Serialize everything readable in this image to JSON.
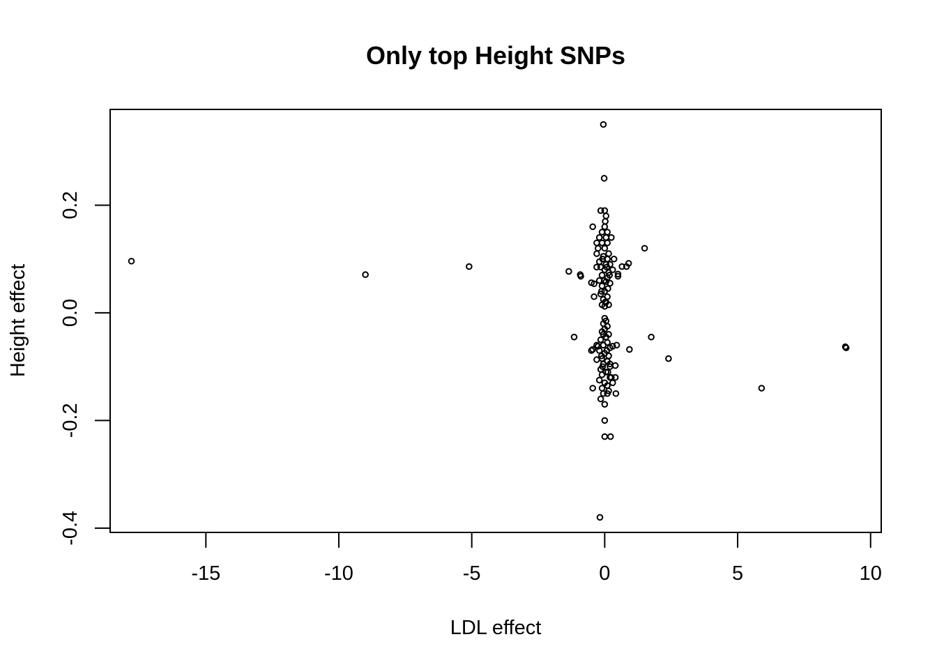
{
  "chart_data": {
    "type": "scatter",
    "title": "Only top Height SNPs",
    "xlabel": "LDL effect",
    "ylabel": "Height effect",
    "xlim": [
      -18.6,
      10.4
    ],
    "ylim": [
      -0.408,
      0.378
    ],
    "x_ticks": [
      -15,
      -10,
      -5,
      0,
      5,
      10
    ],
    "x_tick_labels": [
      "-15",
      "-10",
      "-5",
      "0",
      "5",
      "10"
    ],
    "y_ticks": [
      -0.4,
      -0.2,
      0.0,
      0.2
    ],
    "y_tick_labels": [
      "-0.4",
      "-0.2",
      "0.0",
      "0.2"
    ],
    "grid": false,
    "points": [
      [
        -17.8,
        0.096
      ],
      [
        -9.0,
        0.071
      ],
      [
        -5.1,
        0.086
      ],
      [
        -1.35,
        0.077
      ],
      [
        -0.92,
        0.071
      ],
      [
        -0.9,
        0.068
      ],
      [
        -0.5,
        0.056
      ],
      [
        -0.4,
        0.054
      ],
      [
        -0.4,
        0.03
      ],
      [
        -0.45,
        0.16
      ],
      [
        1.5,
        0.12
      ],
      [
        0.9,
        0.092
      ],
      [
        0.82,
        0.086
      ],
      [
        0.65,
        0.086
      ],
      [
        0.5,
        0.072
      ],
      [
        0.5,
        0.068
      ],
      [
        0.35,
        0.1
      ],
      [
        0.3,
        0.08
      ],
      [
        0.25,
        0.14
      ],
      [
        -1.15,
        -0.045
      ],
      [
        0.93,
        -0.068
      ],
      [
        1.75,
        -0.045
      ],
      [
        2.4,
        -0.085
      ],
      [
        5.9,
        -0.14
      ],
      [
        9.05,
        -0.063
      ],
      [
        9.08,
        -0.065
      ],
      [
        -0.45,
        -0.068
      ],
      [
        -0.5,
        -0.07
      ],
      [
        -0.3,
        -0.087
      ],
      [
        -0.45,
        -0.14
      ],
      [
        0.45,
        -0.06
      ],
      [
        0.4,
        -0.098
      ],
      [
        0.4,
        -0.12
      ],
      [
        0.42,
        -0.15
      ],
      [
        0.3,
        -0.13
      ],
      [
        0.25,
        -0.12
      ],
      [
        0.2,
        -0.095
      ],
      [
        -0.05,
        0.35
      ],
      [
        -0.02,
        0.25
      ],
      [
        -0.15,
        0.19
      ],
      [
        0.0,
        0.19
      ],
      [
        0.05,
        0.18
      ],
      [
        0.02,
        0.17
      ],
      [
        0.0,
        0.16
      ],
      [
        -0.1,
        0.15
      ],
      [
        0.1,
        0.15
      ],
      [
        -0.2,
        0.14
      ],
      [
        0.05,
        0.14
      ],
      [
        -0.3,
        0.13
      ],
      [
        -0.1,
        0.13
      ],
      [
        0.1,
        0.13
      ],
      [
        -0.25,
        0.12
      ],
      [
        0.0,
        0.12
      ],
      [
        0.15,
        0.11
      ],
      [
        -0.3,
        0.11
      ],
      [
        -0.05,
        0.105
      ],
      [
        0.1,
        0.1
      ],
      [
        -0.2,
        0.095
      ],
      [
        0.05,
        0.09
      ],
      [
        0.2,
        0.09
      ],
      [
        -0.15,
        0.085
      ],
      [
        -0.3,
        0.085
      ],
      [
        0.0,
        0.08
      ],
      [
        0.15,
        0.075
      ],
      [
        -0.1,
        0.07
      ],
      [
        0.1,
        0.065
      ],
      [
        -0.2,
        0.06
      ],
      [
        0.05,
        0.058
      ],
      [
        0.2,
        0.055
      ],
      [
        -0.1,
        0.05
      ],
      [
        0.12,
        0.045
      ],
      [
        0.0,
        0.04
      ],
      [
        -0.15,
        0.035
      ],
      [
        0.1,
        0.03
      ],
      [
        -0.05,
        0.025
      ],
      [
        0.05,
        0.02
      ],
      [
        -0.1,
        0.015
      ],
      [
        0.0,
        0.012
      ],
      [
        0.15,
        0.015
      ],
      [
        -0.08,
        0.1
      ],
      [
        0.08,
        0.085
      ],
      [
        -0.02,
        0.06
      ],
      [
        0.02,
        0.02
      ],
      [
        -0.12,
        0.04
      ],
      [
        0.18,
        0.07
      ],
      [
        0.0,
        -0.01
      ],
      [
        0.05,
        -0.015
      ],
      [
        -0.05,
        -0.02
      ],
      [
        0.1,
        -0.025
      ],
      [
        0.0,
        -0.03
      ],
      [
        -0.1,
        -0.035
      ],
      [
        0.15,
        -0.04
      ],
      [
        0.05,
        -0.045
      ],
      [
        -0.15,
        -0.05
      ],
      [
        0.1,
        -0.055
      ],
      [
        -0.05,
        -0.06
      ],
      [
        0.2,
        -0.065
      ],
      [
        -0.2,
        -0.07
      ],
      [
        0.0,
        -0.075
      ],
      [
        0.15,
        -0.08
      ],
      [
        -0.1,
        -0.085
      ],
      [
        0.1,
        -0.09
      ],
      [
        -0.05,
        -0.095
      ],
      [
        0.2,
        -0.1
      ],
      [
        -0.15,
        -0.105
      ],
      [
        0.05,
        -0.11
      ],
      [
        -0.1,
        -0.115
      ],
      [
        0.2,
        -0.12
      ],
      [
        -0.2,
        -0.125
      ],
      [
        0.0,
        -0.13
      ],
      [
        0.1,
        -0.135
      ],
      [
        -0.1,
        -0.14
      ],
      [
        0.15,
        -0.145
      ],
      [
        -0.05,
        -0.15
      ],
      [
        0.1,
        -0.15
      ],
      [
        -0.15,
        -0.16
      ],
      [
        0.0,
        -0.17
      ],
      [
        0.0,
        -0.2
      ],
      [
        0.0,
        -0.23
      ],
      [
        0.22,
        -0.23
      ],
      [
        -0.18,
        -0.38
      ],
      [
        -0.25,
        -0.062
      ],
      [
        -0.3,
        -0.06
      ],
      [
        0.3,
        -0.062
      ],
      [
        -0.05,
        -0.04
      ],
      [
        0.08,
        -0.07
      ],
      [
        -0.08,
        -0.1
      ],
      [
        0.12,
        -0.11
      ],
      [
        -0.12,
        -0.08
      ]
    ]
  }
}
